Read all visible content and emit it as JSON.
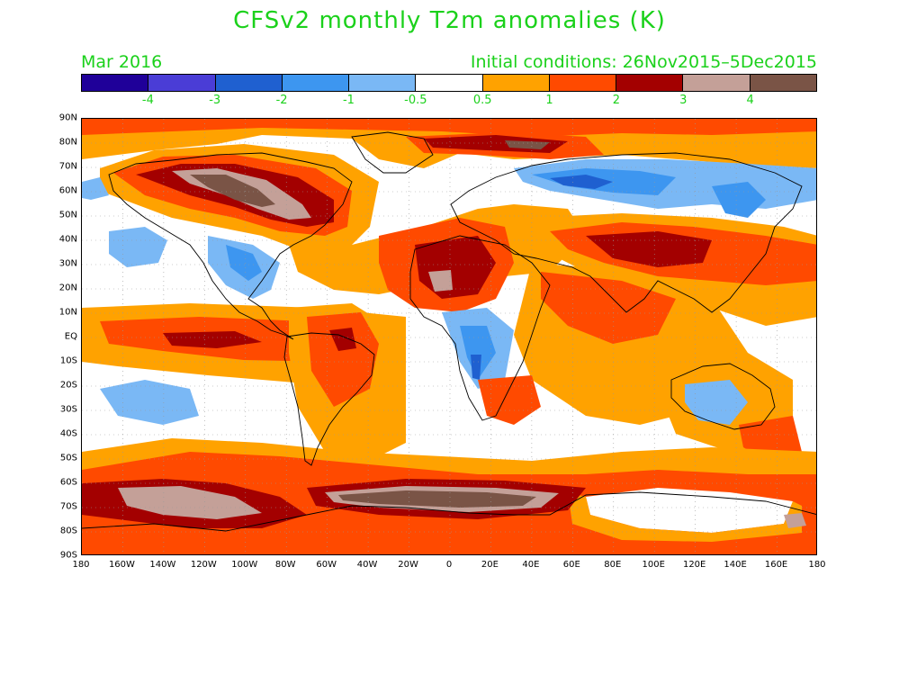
{
  "header": {
    "title": "CFSv2 monthly T2m anomalies (K)",
    "month": "Mar 2016",
    "initial_conditions": "Initial conditions: 26Nov2015–5Dec2015"
  },
  "colorbar": {
    "colors": [
      "#1f0099",
      "#4a3dd6",
      "#1f60d0",
      "#3d96f0",
      "#7ab8f5",
      "#ffffff",
      "#ffa200",
      "#ff4a00",
      "#a30000",
      "#c4a098",
      "#7a5446"
    ],
    "labels": [
      "-4",
      "-3",
      "-2",
      "-1",
      "-0.5",
      "0.5",
      "1",
      "2",
      "3",
      "4"
    ]
  },
  "axes": {
    "lat_labels": [
      "90N",
      "80N",
      "70N",
      "60N",
      "50N",
      "40N",
      "30N",
      "20N",
      "10N",
      "EQ",
      "10S",
      "20S",
      "30S",
      "40S",
      "50S",
      "60S",
      "70S",
      "80S",
      "90S"
    ],
    "lon_labels": [
      "180",
      "160W",
      "140W",
      "120W",
      "100W",
      "80W",
      "60W",
      "40W",
      "20W",
      "0",
      "20E",
      "40E",
      "60E",
      "80E",
      "100E",
      "120E",
      "140E",
      "160E",
      "180"
    ]
  },
  "palette": {
    "white": "#ffffff",
    "lightblue": "#7ab8f5",
    "blue": "#3d96f0",
    "darkblue": "#1f60d0",
    "orange": "#ffa200",
    "red": "#ff4a00",
    "darkred": "#a30000",
    "pink": "#c4a098",
    "brown": "#7a5446",
    "text": "#1bd11b"
  }
}
